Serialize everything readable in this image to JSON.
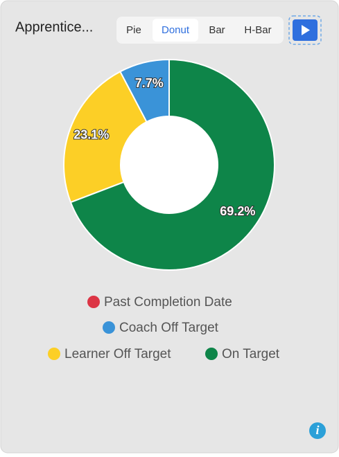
{
  "chart_data": {
    "type": "donut",
    "title": "Apprentice...",
    "categories": [
      "Past Completion Date",
      "Coach Off Target",
      "Learner Off Target",
      "On Target"
    ],
    "values": [
      0,
      7.7,
      23.1,
      69.2
    ],
    "value_labels": [
      null,
      "7.7%",
      "23.1%",
      "69.2%"
    ],
    "colors": [
      "#dc3545",
      "#3a93d8",
      "#fccf26",
      "#0e8549"
    ]
  },
  "tabs": [
    "Pie",
    "Donut",
    "Bar",
    "H-Bar"
  ],
  "active_tab": 1
}
